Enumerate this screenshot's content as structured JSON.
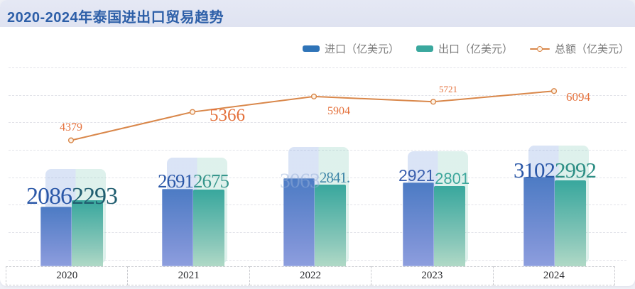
{
  "header": {
    "title": "2020-2024年泰国进出口贸易趋势"
  },
  "legend": {
    "items": [
      {
        "label": "进口（亿美元）",
        "color": "#2f74b8",
        "marker": "bar"
      },
      {
        "label": "出口（亿美元）",
        "color": "#3aa89e",
        "marker": "bar"
      },
      {
        "label": "总额（亿美元）",
        "color": "#d9874a",
        "marker": "line"
      }
    ]
  },
  "chart_data": {
    "type": "bar",
    "categories": [
      "2020",
      "2021",
      "2022",
      "2023",
      "2024"
    ],
    "series": [
      {
        "name": "进口（亿美元）",
        "chart_type": "bar",
        "color": "#3d74c0",
        "values": [
          2086,
          2691,
          3063,
          2921,
          3102
        ],
        "data_labels": [
          "2086",
          "2691",
          "3063",
          "2921",
          "3102"
        ]
      },
      {
        "name": "出口（亿美元）",
        "chart_type": "bar",
        "color": "#3aa89e",
        "values": [
          2293,
          2675,
          2841,
          2801,
          2992
        ],
        "data_labels": [
          "2293",
          "2675",
          "2841.",
          "2801",
          "2992"
        ]
      },
      {
        "name": "总额（亿美元）",
        "chart_type": "line",
        "color": "#d9874a",
        "values": [
          4379,
          5366,
          5904,
          5721,
          6094
        ],
        "data_labels": [
          "4379",
          "5366",
          "5904",
          "5721",
          "6094"
        ]
      }
    ],
    "title": "2020-2024年泰国进出口贸易趋势",
    "xlabel": "",
    "ylabel": "",
    "ylim": [
      0,
      6900
    ],
    "grid": "horizontal-dashed",
    "legend_position": "top-right"
  }
}
